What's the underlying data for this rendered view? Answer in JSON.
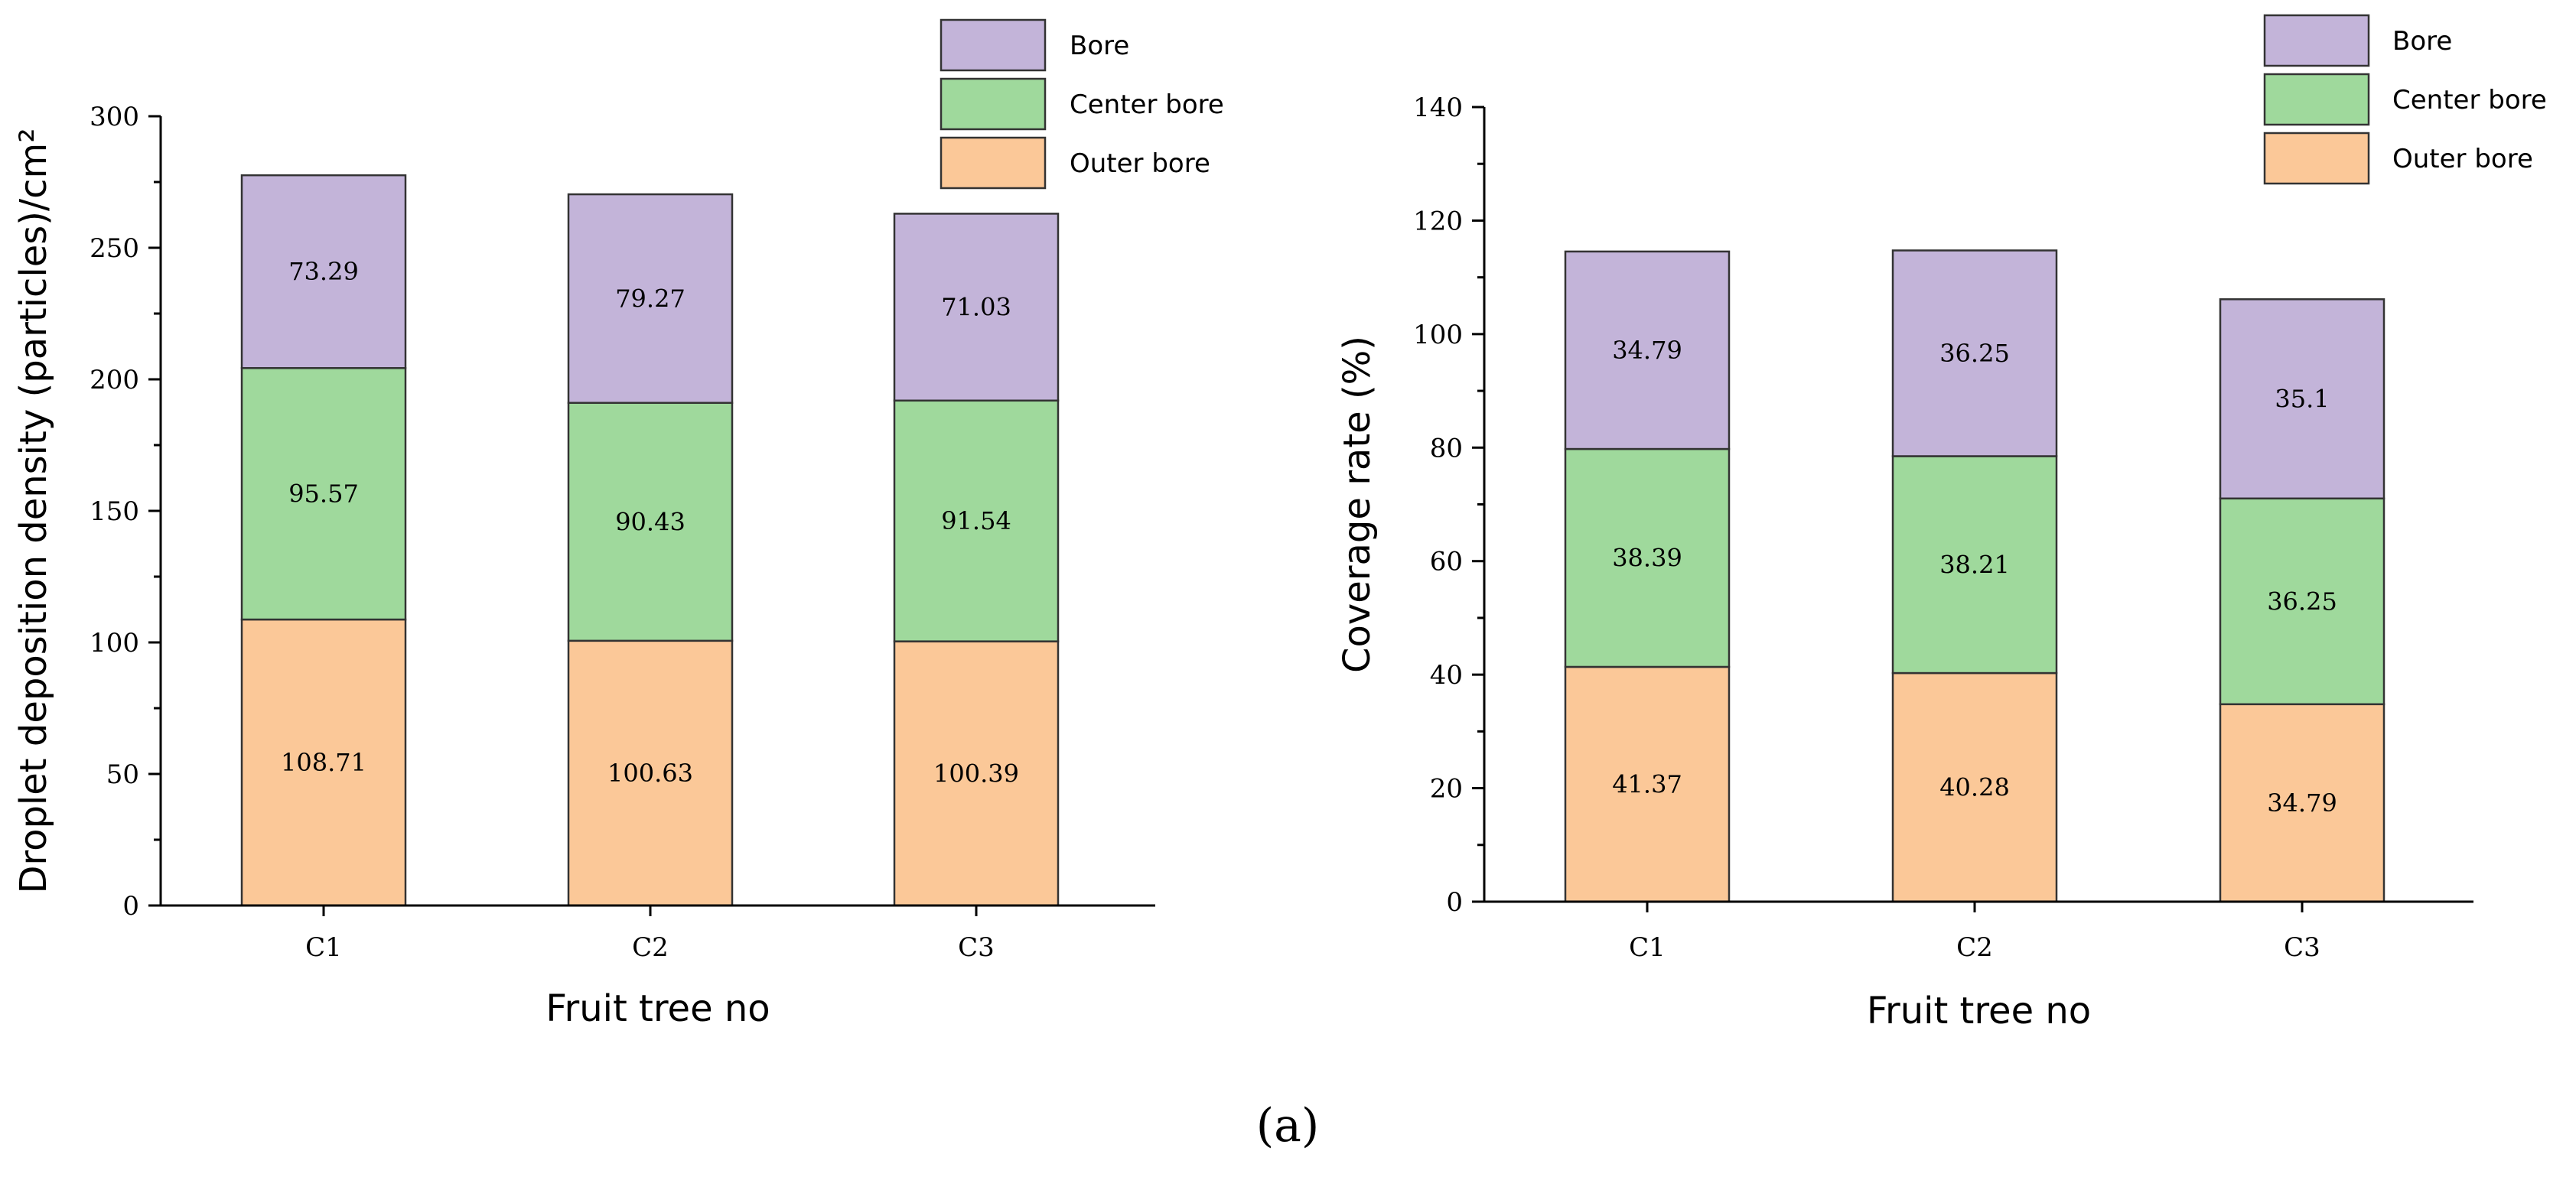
{
  "chart_data": [
    {
      "type": "bar",
      "stacked": true,
      "categories": [
        "C1",
        "C2",
        "C3"
      ],
      "series": [
        {
          "name": "Outer bore",
          "values": [
            108.71,
            100.63,
            100.39
          ],
          "color": "#fbc898"
        },
        {
          "name": "Center bore",
          "values": [
            95.57,
            90.43,
            91.54
          ],
          "color": "#9fd99c"
        },
        {
          "name": "Bore",
          "values": [
            73.29,
            79.27,
            71.03
          ],
          "color": "#c3b4d9"
        }
      ],
      "xlabel": "Fruit tree no",
      "ylabel": "Droplet deposition density (particles)/cm²",
      "ylim": [
        0,
        300
      ],
      "yticks": [
        0,
        50,
        100,
        150,
        200,
        250,
        300
      ],
      "grid": false,
      "legend": "top-right"
    },
    {
      "type": "bar",
      "stacked": true,
      "categories": [
        "C1",
        "C2",
        "C3"
      ],
      "series": [
        {
          "name": "Outer bore",
          "values": [
            41.37,
            40.28,
            34.79
          ],
          "color": "#fbc898"
        },
        {
          "name": "Center bore",
          "values": [
            38.39,
            38.21,
            36.25
          ],
          "color": "#9fd99c"
        },
        {
          "name": "Bore",
          "values": [
            34.79,
            36.25,
            35.1
          ],
          "color": "#c3b4d9"
        }
      ],
      "xlabel": "Fruit tree no",
      "ylabel": "Coverage rate (%)",
      "ylim": [
        0,
        140
      ],
      "yticks": [
        0,
        20,
        40,
        60,
        80,
        100,
        120,
        140
      ],
      "grid": false,
      "legend": "top-right"
    }
  ],
  "caption": "(a)"
}
